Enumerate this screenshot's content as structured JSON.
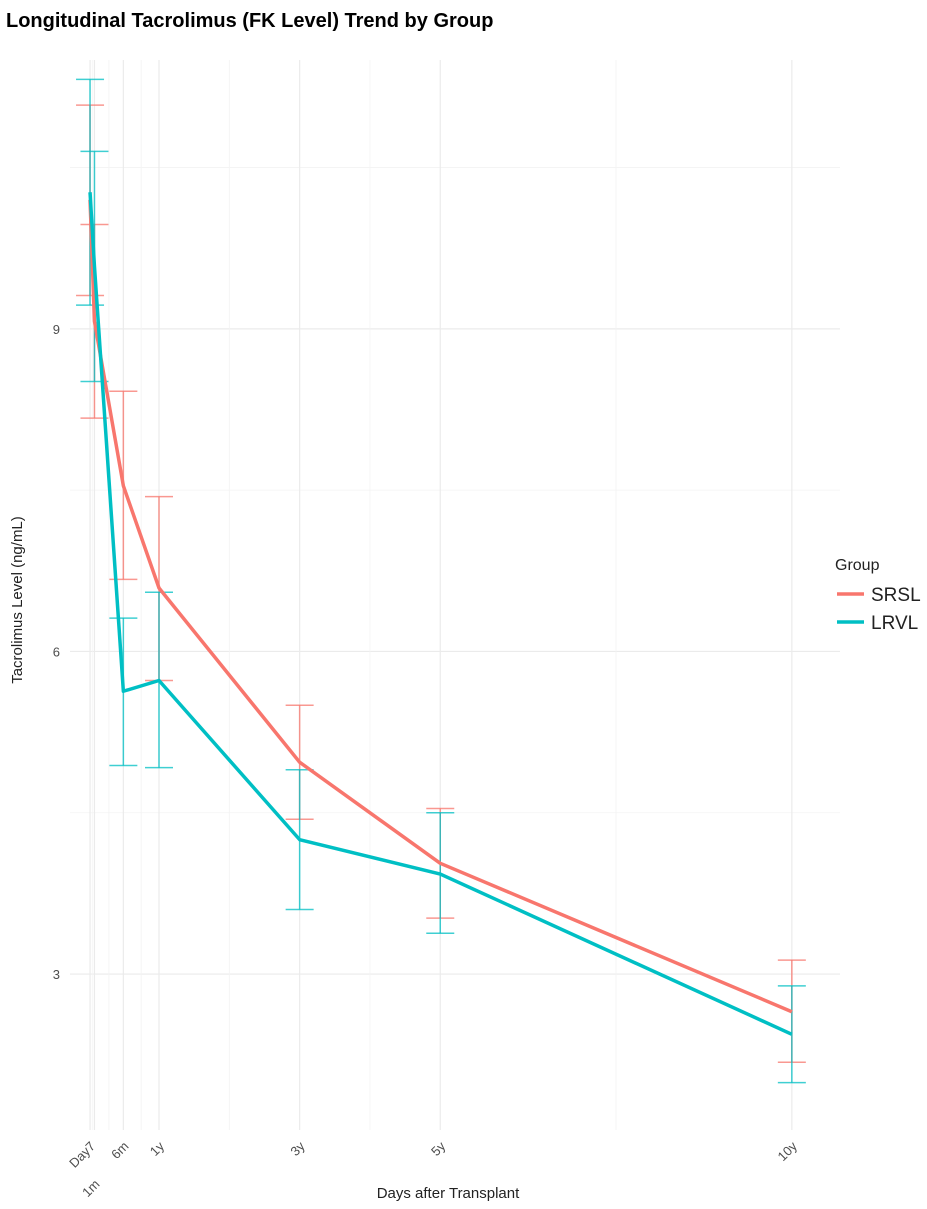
{
  "chart_data": {
    "type": "line",
    "title": "Longitudinal Tacrolimus (FK Level) Trend by Group",
    "xlabel": "Days after Transplant",
    "ylabel": "Tacrolimus Level (ng/mL)",
    "x_ticks": [
      {
        "label": "Day7",
        "day": 7
      },
      {
        "label": "1m",
        "day": 30
      },
      {
        "label": "6m",
        "day": 180
      },
      {
        "label": "1y",
        "day": 365
      },
      {
        "label": "3y",
        "day": 1095
      },
      {
        "label": "5y",
        "day": 1825
      },
      {
        "label": "10y",
        "day": 3650
      }
    ],
    "y_ticks": [
      3,
      6,
      9
    ],
    "ylim": [
      1.55,
      11.5
    ],
    "xlim": [
      -97,
      3900
    ],
    "grid": true,
    "legend": {
      "title": "Group",
      "position": "right"
    },
    "series": [
      {
        "name": "SRSL",
        "color": "#F8766D",
        "x": [
          7,
          30,
          180,
          365,
          1095,
          1825,
          3650
        ],
        "values": [
          10.2,
          9.07,
          7.54,
          6.59,
          4.97,
          4.03,
          2.65
        ],
        "lower": [
          9.31,
          8.17,
          6.67,
          5.73,
          4.44,
          3.52,
          2.18
        ],
        "upper": [
          11.08,
          9.97,
          8.42,
          7.44,
          5.5,
          4.54,
          3.13
        ]
      },
      {
        "name": "LRVL",
        "color": "#00BFC4",
        "x": [
          7,
          30,
          180,
          365,
          1095,
          1825,
          3650
        ],
        "values": [
          10.27,
          9.58,
          5.63,
          5.73,
          4.25,
          3.93,
          2.44
        ],
        "lower": [
          9.22,
          8.51,
          4.94,
          4.92,
          3.6,
          3.38,
          1.99
        ],
        "upper": [
          11.32,
          10.65,
          6.31,
          6.55,
          4.9,
          4.5,
          2.89
        ]
      }
    ]
  }
}
